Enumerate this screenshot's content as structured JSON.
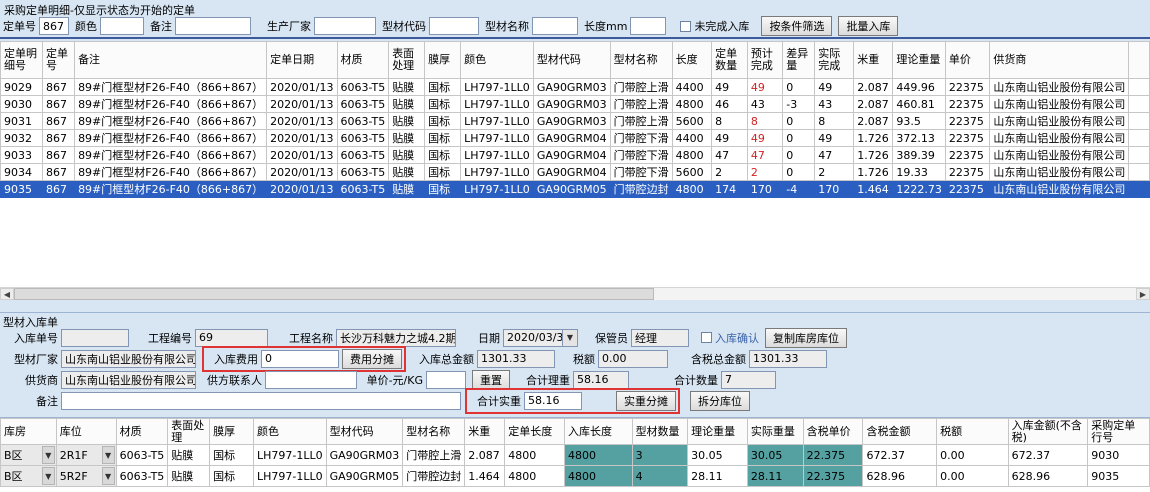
{
  "window_title": "采购定单明细-仅显示状态为开始的定单",
  "filter_bar": {
    "fields": [
      {
        "label": "定单号",
        "value": "867"
      },
      {
        "label": "颜色",
        "value": ""
      },
      {
        "label": "备注",
        "value": ""
      },
      {
        "label": "生产厂家",
        "value": ""
      },
      {
        "label": "型材代码",
        "value": ""
      },
      {
        "label": "型材名称",
        "value": ""
      },
      {
        "label": "长度mm",
        "value": ""
      }
    ],
    "unfinished_checkbox": {
      "label": "未完成入库",
      "checked": false
    },
    "filter_button": "按条件筛选",
    "batch_inbound_button": "批量入库"
  },
  "order_table": {
    "columns": [
      "定单明细号",
      "定单号",
      "备注",
      "定单日期",
      "材质",
      "表面处理",
      "膜厚",
      "颜色",
      "型材代码",
      "型材名称",
      "长度",
      "定单数量",
      "预计完成",
      "差异量",
      "实际完成",
      "米重",
      "理论重量",
      "单价",
      "供货商",
      ""
    ],
    "red_column": 12,
    "rows": [
      {
        "selected": false,
        "red": true,
        "cells": [
          "9029",
          "867",
          "89#门框型材F26-F40（866+867）",
          "2020/01/13",
          "6063-T5",
          "贴膜",
          "国标",
          "LH797-1LL0",
          "GA90GRM03",
          "门带腔上滑",
          "4400",
          "49",
          "49",
          "0",
          "49",
          "2.087",
          "449.96",
          "22375",
          "山东南山铝业股份有限公司",
          ""
        ]
      },
      {
        "selected": false,
        "red": false,
        "cells": [
          "9030",
          "867",
          "89#门框型材F26-F40（866+867）",
          "2020/01/13",
          "6063-T5",
          "贴膜",
          "国标",
          "LH797-1LL0",
          "GA90GRM03",
          "门带腔上滑",
          "4800",
          "46",
          "43",
          "-3",
          "43",
          "2.087",
          "460.81",
          "22375",
          "山东南山铝业股份有限公司",
          ""
        ]
      },
      {
        "selected": false,
        "red": true,
        "cells": [
          "9031",
          "867",
          "89#门框型材F26-F40（866+867）",
          "2020/01/13",
          "6063-T5",
          "贴膜",
          "国标",
          "LH797-1LL0",
          "GA90GRM03",
          "门带腔上滑",
          "5600",
          "8",
          "8",
          "0",
          "8",
          "2.087",
          "93.5",
          "22375",
          "山东南山铝业股份有限公司",
          ""
        ]
      },
      {
        "selected": false,
        "red": true,
        "cells": [
          "9032",
          "867",
          "89#门框型材F26-F40（866+867）",
          "2020/01/13",
          "6063-T5",
          "贴膜",
          "国标",
          "LH797-1LL0",
          "GA90GRM04",
          "门带腔下滑",
          "4400",
          "49",
          "49",
          "0",
          "49",
          "1.726",
          "372.13",
          "22375",
          "山东南山铝业股份有限公司",
          ""
        ]
      },
      {
        "selected": false,
        "red": true,
        "cells": [
          "9033",
          "867",
          "89#门框型材F26-F40（866+867）",
          "2020/01/13",
          "6063-T5",
          "贴膜",
          "国标",
          "LH797-1LL0",
          "GA90GRM04",
          "门带腔下滑",
          "4800",
          "47",
          "47",
          "0",
          "47",
          "1.726",
          "389.39",
          "22375",
          "山东南山铝业股份有限公司",
          ""
        ]
      },
      {
        "selected": false,
        "red": true,
        "cells": [
          "9034",
          "867",
          "89#门框型材F26-F40（866+867）",
          "2020/01/13",
          "6063-T5",
          "贴膜",
          "国标",
          "LH797-1LL0",
          "GA90GRM04",
          "门带腔下滑",
          "5600",
          "2",
          "2",
          "0",
          "2",
          "1.726",
          "19.33",
          "22375",
          "山东南山铝业股份有限公司",
          ""
        ]
      },
      {
        "selected": true,
        "red": false,
        "cells": [
          "9035",
          "867",
          "89#门框型材F26-F40（866+867）",
          "2020/01/13",
          "6063-T5",
          "贴膜",
          "国标",
          "LH797-1LL0",
          "GA90GRM05",
          "门带腔边封",
          "4800",
          "174",
          "170",
          "-4",
          "170",
          "1.464",
          "1222.73",
          "22375",
          "山东南山铝业股份有限公司",
          ""
        ]
      }
    ]
  },
  "inbound_panel": {
    "title": "型材入库单",
    "fields": {
      "inbound_no": {
        "label": "入库单号",
        "value": ""
      },
      "project_no": {
        "label": "工程编号",
        "value": "69"
      },
      "project_name": {
        "label": "工程名称",
        "value": "长沙万科魅力之城4.2期"
      },
      "date": {
        "label": "日期",
        "value": "2020/03/31"
      },
      "keeper": {
        "label": "保管员",
        "value": "经理"
      },
      "confirm_checkbox": {
        "label": "入库确认",
        "checked": false
      },
      "copy_location_button": "复制库房库位",
      "factory": {
        "label": "型材厂家",
        "value": "山东南山铝业股份有限公司"
      },
      "inbound_fee": {
        "label": "入库费用",
        "value": "0"
      },
      "fee_share_button": "费用分摊",
      "total_amount": {
        "label": "入库总金额",
        "value": "1301.33"
      },
      "tax": {
        "label": "税额",
        "value": "0.00"
      },
      "total_with_tax": {
        "label": "含税总金额",
        "value": "1301.33"
      },
      "supplier": {
        "label": "供货商",
        "value": "山东南山铝业股份有限公司"
      },
      "supplier_contact": {
        "label": "供方联系人",
        "value": ""
      },
      "unit_price": {
        "label": "单价-元/KG",
        "value": ""
      },
      "reset_button": "重置",
      "total_theory_weight": {
        "label": "合计理重",
        "value": "58.16"
      },
      "total_qty": {
        "label": "合计数量",
        "value": "7"
      },
      "remark": {
        "label": "备注",
        "value": ""
      },
      "total_actual_weight": {
        "label": "合计实重",
        "value": "58.16"
      },
      "actual_share_button": "实重分摊",
      "split_location_button": "拆分库位"
    }
  },
  "inbound_table": {
    "columns": [
      "库房",
      "库位",
      "材质",
      "表面处理",
      "膜厚",
      "颜色",
      "型材代码",
      "型材名称",
      "米重",
      "定单长度",
      "入库长度",
      "型材数量",
      "理论重量",
      "实际重量",
      "含税单价",
      "含税金额",
      "税额",
      "入库金额(不含税)",
      "采购定单行号"
    ],
    "teal_columns": [
      10,
      11,
      13,
      14
    ],
    "combo_columns": [
      0,
      1
    ],
    "rows": [
      {
        "cells": [
          "B区",
          "2R1F",
          "6063-T5",
          "贴膜",
          "国标",
          "LH797-1LL0",
          "GA90GRM03",
          "门带腔上滑",
          "2.087",
          "4800",
          "4800",
          "3",
          "30.05",
          "30.05",
          "22.375",
          "672.37",
          "0.00",
          "672.37",
          "9030"
        ]
      },
      {
        "cells": [
          "B区",
          "5R2F",
          "6063-T5",
          "贴膜",
          "国标",
          "LH797-1LL0",
          "GA90GRM05",
          "门带腔边封",
          "1.464",
          "4800",
          "4800",
          "4",
          "28.11",
          "28.11",
          "22.375",
          "628.96",
          "0.00",
          "628.96",
          "9035"
        ]
      }
    ]
  }
}
